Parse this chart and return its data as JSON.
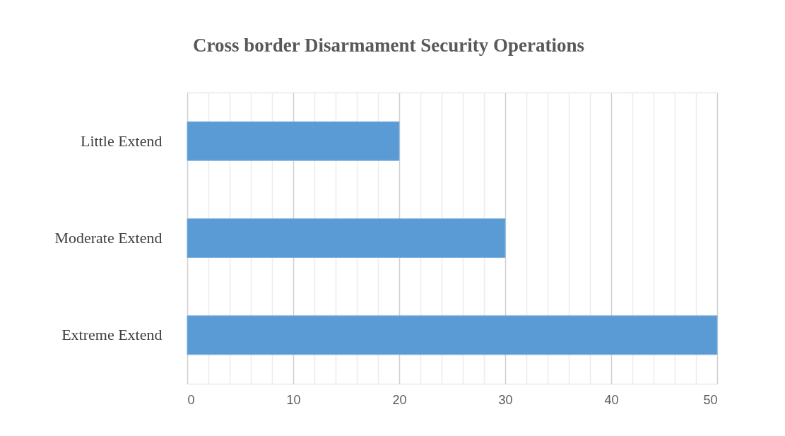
{
  "chart_data": {
    "type": "bar",
    "title": "Cross border Disarmament Security Operations",
    "orientation": "horizontal",
    "categories": [
      "Little Extend",
      "Moderate Extend",
      "Extreme Extend"
    ],
    "values": [
      20,
      30,
      50
    ],
    "color": "#5b9bd5",
    "xlim": [
      0,
      50
    ],
    "xticks": [
      0,
      {
        "value": 2,
        "label": null
      },
      {
        "value": 4,
        "label": null
      },
      {
        "value": 6,
        "label": null
      },
      {
        "value": 8,
        "label": null
      },
      10,
      {
        "value": 12,
        "label": null
      },
      {
        "value": 14,
        "label": null
      },
      {
        "value": 16,
        "label": null
      },
      {
        "value": 18,
        "label": null
      },
      20,
      {
        "value": 22,
        "label": null
      },
      {
        "value": 24,
        "label": null
      },
      {
        "value": 26,
        "label": null
      },
      {
        "value": 28,
        "label": null
      },
      30,
      {
        "value": 32,
        "label": null
      },
      {
        "value": 34,
        "label": null
      },
      {
        "value": 36,
        "label": null
      },
      {
        "value": 38,
        "label": null
      },
      40,
      {
        "value": 42,
        "label": null
      },
      {
        "value": 44,
        "label": null
      },
      {
        "value": 46,
        "label": null
      },
      {
        "value": 48,
        "label": null
      },
      50
    ],
    "grid": "x"
  }
}
